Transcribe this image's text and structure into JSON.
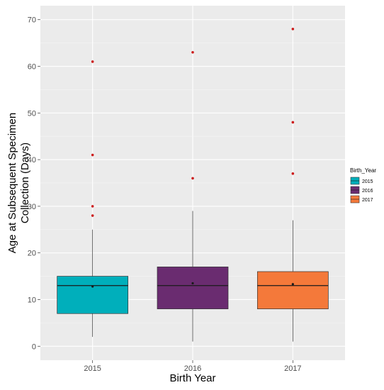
{
  "chart_data": {
    "type": "boxplot",
    "xlabel": "Birth Year",
    "ylabel_lines": [
      "Age at Subsequent Specimen",
      "Collection (Days)"
    ],
    "ylim": [
      -3,
      73
    ],
    "yticks": [
      0,
      10,
      20,
      30,
      40,
      50,
      60,
      70
    ],
    "categories": [
      "2015",
      "2016",
      "2017"
    ],
    "grid": true,
    "legend": {
      "title": "Birth_Year",
      "placement": "right",
      "entries": [
        "2015",
        "2016",
        "2017"
      ]
    },
    "series": [
      {
        "category": "2015",
        "color": "#00AFBB",
        "whisker_low": 2,
        "q1": 7,
        "median": 13,
        "q3": 15,
        "whisker_high": 25,
        "mean": 12.8,
        "outliers": [
          28,
          30,
          41,
          61
        ]
      },
      {
        "category": "2016",
        "color": "#6A2C70",
        "whisker_low": 1,
        "q1": 8,
        "median": 13,
        "q3": 17,
        "whisker_high": 29,
        "mean": 13.5,
        "outliers": [
          36,
          63
        ]
      },
      {
        "category": "2017",
        "color": "#F4793A",
        "whisker_low": 1,
        "q1": 8,
        "median": 13,
        "q3": 16,
        "whisker_high": 27,
        "mean": 13.3,
        "outliers": [
          37,
          48,
          68
        ]
      }
    ],
    "outlier_color": "#CC1A1A",
    "mean_color": "#1a1a1a"
  }
}
